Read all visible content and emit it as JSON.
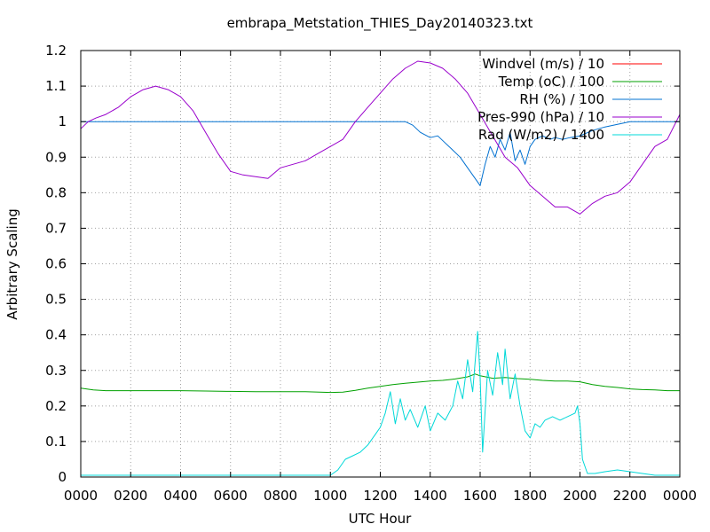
{
  "chart_data": {
    "type": "line",
    "title": "embrapa_Metstation_THIES_Day20140323.txt",
    "xlabel": "UTC Hour",
    "ylabel": "Arbitrary Scaling",
    "xlim": [
      0,
      24
    ],
    "ylim": [
      0,
      1.2
    ],
    "grid": true,
    "legend_position": "top-right",
    "x_ticks": [
      {
        "value": 0,
        "label": "0000"
      },
      {
        "value": 2,
        "label": "0200"
      },
      {
        "value": 4,
        "label": "0400"
      },
      {
        "value": 6,
        "label": "0600"
      },
      {
        "value": 8,
        "label": "0800"
      },
      {
        "value": 10,
        "label": "1000"
      },
      {
        "value": 12,
        "label": "1200"
      },
      {
        "value": 14,
        "label": "1400"
      },
      {
        "value": 16,
        "label": "1600"
      },
      {
        "value": 18,
        "label": "1800"
      },
      {
        "value": 20,
        "label": "2000"
      },
      {
        "value": 22,
        "label": "2200"
      },
      {
        "value": 24,
        "label": "0000"
      }
    ],
    "y_ticks": [
      {
        "value": 0,
        "label": "0"
      },
      {
        "value": 0.1,
        "label": "0.1"
      },
      {
        "value": 0.2,
        "label": "0.2"
      },
      {
        "value": 0.3,
        "label": "0.3"
      },
      {
        "value": 0.4,
        "label": "0.4"
      },
      {
        "value": 0.5,
        "label": "0.5"
      },
      {
        "value": 0.6,
        "label": "0.6"
      },
      {
        "value": 0.7,
        "label": "0.7"
      },
      {
        "value": 0.8,
        "label": "0.8"
      },
      {
        "value": 0.9,
        "label": "0.9"
      },
      {
        "value": 1,
        "label": "1"
      },
      {
        "value": 1.1,
        "label": "1.1"
      },
      {
        "value": 1.2,
        "label": "1.2"
      }
    ],
    "series": [
      {
        "name": "Windvel (m/s) / 10",
        "color": "#ff0000",
        "x": [],
        "y": []
      },
      {
        "name": "Temp (oC) / 100",
        "color": "#00a000",
        "x": [
          0,
          0.5,
          1,
          2,
          3,
          4,
          5,
          6,
          7,
          8,
          9,
          10,
          10.5,
          11,
          11.5,
          12,
          12.5,
          13,
          13.5,
          14,
          14.5,
          15,
          15.5,
          15.8,
          16,
          16.5,
          17,
          17.5,
          18,
          18.5,
          19,
          19.5,
          20,
          20.5,
          21,
          21.5,
          22,
          22.5,
          23,
          23.5,
          24
        ],
        "y": [
          0.25,
          0.245,
          0.243,
          0.243,
          0.243,
          0.243,
          0.242,
          0.241,
          0.24,
          0.24,
          0.24,
          0.238,
          0.239,
          0.244,
          0.25,
          0.255,
          0.26,
          0.264,
          0.267,
          0.27,
          0.272,
          0.276,
          0.282,
          0.29,
          0.285,
          0.278,
          0.28,
          0.277,
          0.275,
          0.272,
          0.27,
          0.27,
          0.268,
          0.26,
          0.255,
          0.252,
          0.248,
          0.246,
          0.245,
          0.243,
          0.243
        ]
      },
      {
        "name": "RH (%) / 100",
        "color": "#0070d0",
        "x": [
          0,
          2,
          4,
          6,
          8,
          10,
          12,
          13,
          13.3,
          13.6,
          14,
          14.3,
          14.6,
          14.9,
          15.2,
          15.5,
          15.8,
          16,
          16.2,
          16.4,
          16.6,
          16.8,
          17,
          17.2,
          17.4,
          17.6,
          17.8,
          18,
          18.2,
          18.5,
          18.8,
          19,
          19.3,
          19.6,
          20,
          20.5,
          21,
          22,
          23,
          24
        ],
        "y": [
          1.0,
          1.0,
          1.0,
          1.0,
          1.0,
          1.0,
          1.0,
          1.0,
          0.99,
          0.97,
          0.955,
          0.96,
          0.94,
          0.92,
          0.9,
          0.87,
          0.84,
          0.82,
          0.88,
          0.93,
          0.9,
          0.95,
          0.92,
          0.97,
          0.89,
          0.92,
          0.88,
          0.93,
          0.95,
          0.96,
          0.95,
          0.955,
          0.95,
          0.955,
          0.96,
          0.975,
          0.985,
          1.0,
          1.0,
          1.0
        ]
      },
      {
        "name": "Pres-990 (hPa) / 10",
        "color": "#9900cc",
        "x": [
          0,
          0.3,
          0.6,
          1,
          1.5,
          2,
          2.5,
          3,
          3.5,
          4,
          4.5,
          5,
          5.5,
          6,
          6.5,
          7,
          7.5,
          8,
          8.5,
          9,
          9.5,
          10,
          10.5,
          11,
          11.5,
          12,
          12.5,
          13,
          13.5,
          14,
          14.5,
          15,
          15.5,
          16,
          16.5,
          17,
          17.5,
          18,
          18.5,
          19,
          19.5,
          20,
          20.5,
          21,
          21.5,
          22,
          22.5,
          23,
          23.5,
          24
        ],
        "y": [
          0.98,
          1.0,
          1.01,
          1.02,
          1.04,
          1.07,
          1.09,
          1.1,
          1.09,
          1.07,
          1.03,
          0.97,
          0.91,
          0.86,
          0.85,
          0.845,
          0.84,
          0.87,
          0.88,
          0.89,
          0.91,
          0.93,
          0.95,
          1.0,
          1.04,
          1.08,
          1.12,
          1.15,
          1.17,
          1.165,
          1.15,
          1.12,
          1.08,
          1.02,
          0.96,
          0.9,
          0.87,
          0.82,
          0.79,
          0.76,
          0.76,
          0.74,
          0.77,
          0.79,
          0.8,
          0.83,
          0.88,
          0.93,
          0.95,
          1.02
        ]
      },
      {
        "name": "Rad (W/m2) / 1400",
        "color": "#00d8d8",
        "x": [
          0,
          2,
          4,
          6,
          8,
          9,
          9.5,
          10,
          10.3,
          10.6,
          10.9,
          11.2,
          11.5,
          11.8,
          12,
          12.2,
          12.4,
          12.6,
          12.8,
          13,
          13.2,
          13.5,
          13.8,
          14,
          14.3,
          14.6,
          14.9,
          15.1,
          15.3,
          15.5,
          15.7,
          15.9,
          16,
          16.1,
          16.3,
          16.5,
          16.7,
          16.9,
          17,
          17.2,
          17.4,
          17.6,
          17.8,
          18,
          18.2,
          18.4,
          18.6,
          18.9,
          19.2,
          19.5,
          19.8,
          19.9,
          20,
          20.1,
          20.3,
          20.6,
          21,
          21.5,
          22,
          22.5,
          23,
          24
        ],
        "y": [
          0.005,
          0.005,
          0.005,
          0.005,
          0.005,
          0.005,
          0.005,
          0.005,
          0.02,
          0.05,
          0.06,
          0.07,
          0.09,
          0.12,
          0.14,
          0.18,
          0.24,
          0.15,
          0.22,
          0.16,
          0.19,
          0.14,
          0.2,
          0.13,
          0.18,
          0.16,
          0.2,
          0.27,
          0.22,
          0.33,
          0.24,
          0.41,
          0.28,
          0.07,
          0.3,
          0.23,
          0.35,
          0.26,
          0.36,
          0.22,
          0.29,
          0.2,
          0.13,
          0.11,
          0.15,
          0.14,
          0.16,
          0.17,
          0.16,
          0.17,
          0.18,
          0.2,
          0.15,
          0.05,
          0.01,
          0.01,
          0.015,
          0.02,
          0.015,
          0.01,
          0.005,
          0.005
        ]
      }
    ]
  }
}
